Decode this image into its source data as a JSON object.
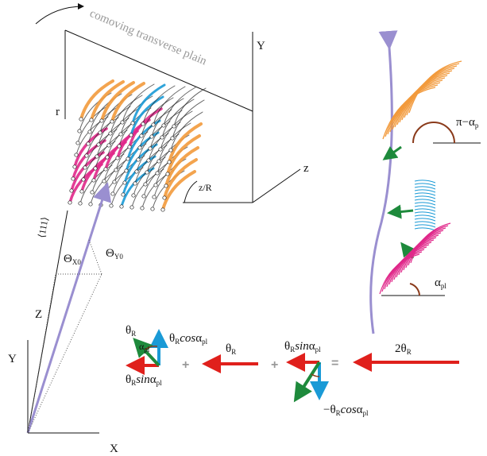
{
  "plane_label": "comoving transverse plain",
  "left": {
    "Y_top": "Y",
    "r": "r",
    "z": "z",
    "zR": "z/R",
    "dir": "⟨111⟩",
    "theta_x0": [
      "Θ",
      "X0"
    ],
    "theta_y0": [
      "Θ",
      "Y0"
    ],
    "Z": "Z",
    "Y": "Y",
    "X": "X"
  },
  "right": {
    "pi_alpha": [
      "π−α",
      "p"
    ],
    "alpha_pl": [
      "α",
      "pl"
    ]
  },
  "equation": {
    "theta_r1": [
      "θ",
      "R"
    ],
    "alpha_small": [
      "α",
      "pl"
    ],
    "cos_term": [
      "θ",
      "R",
      "cos",
      "α",
      "pl"
    ],
    "sin_term1": [
      "θ",
      "R",
      "sin",
      "α",
      "pl"
    ],
    "plus1": "+",
    "theta_r2": [
      "θ",
      "R"
    ],
    "plus2": "+",
    "sin_term2": [
      "θ",
      "R",
      "sin",
      "α",
      "pl"
    ],
    "eq": "=",
    "two_theta": [
      "2θ",
      "R"
    ],
    "neg_cos": [
      "−θ",
      "R",
      "cos",
      "α",
      "pl"
    ]
  }
}
